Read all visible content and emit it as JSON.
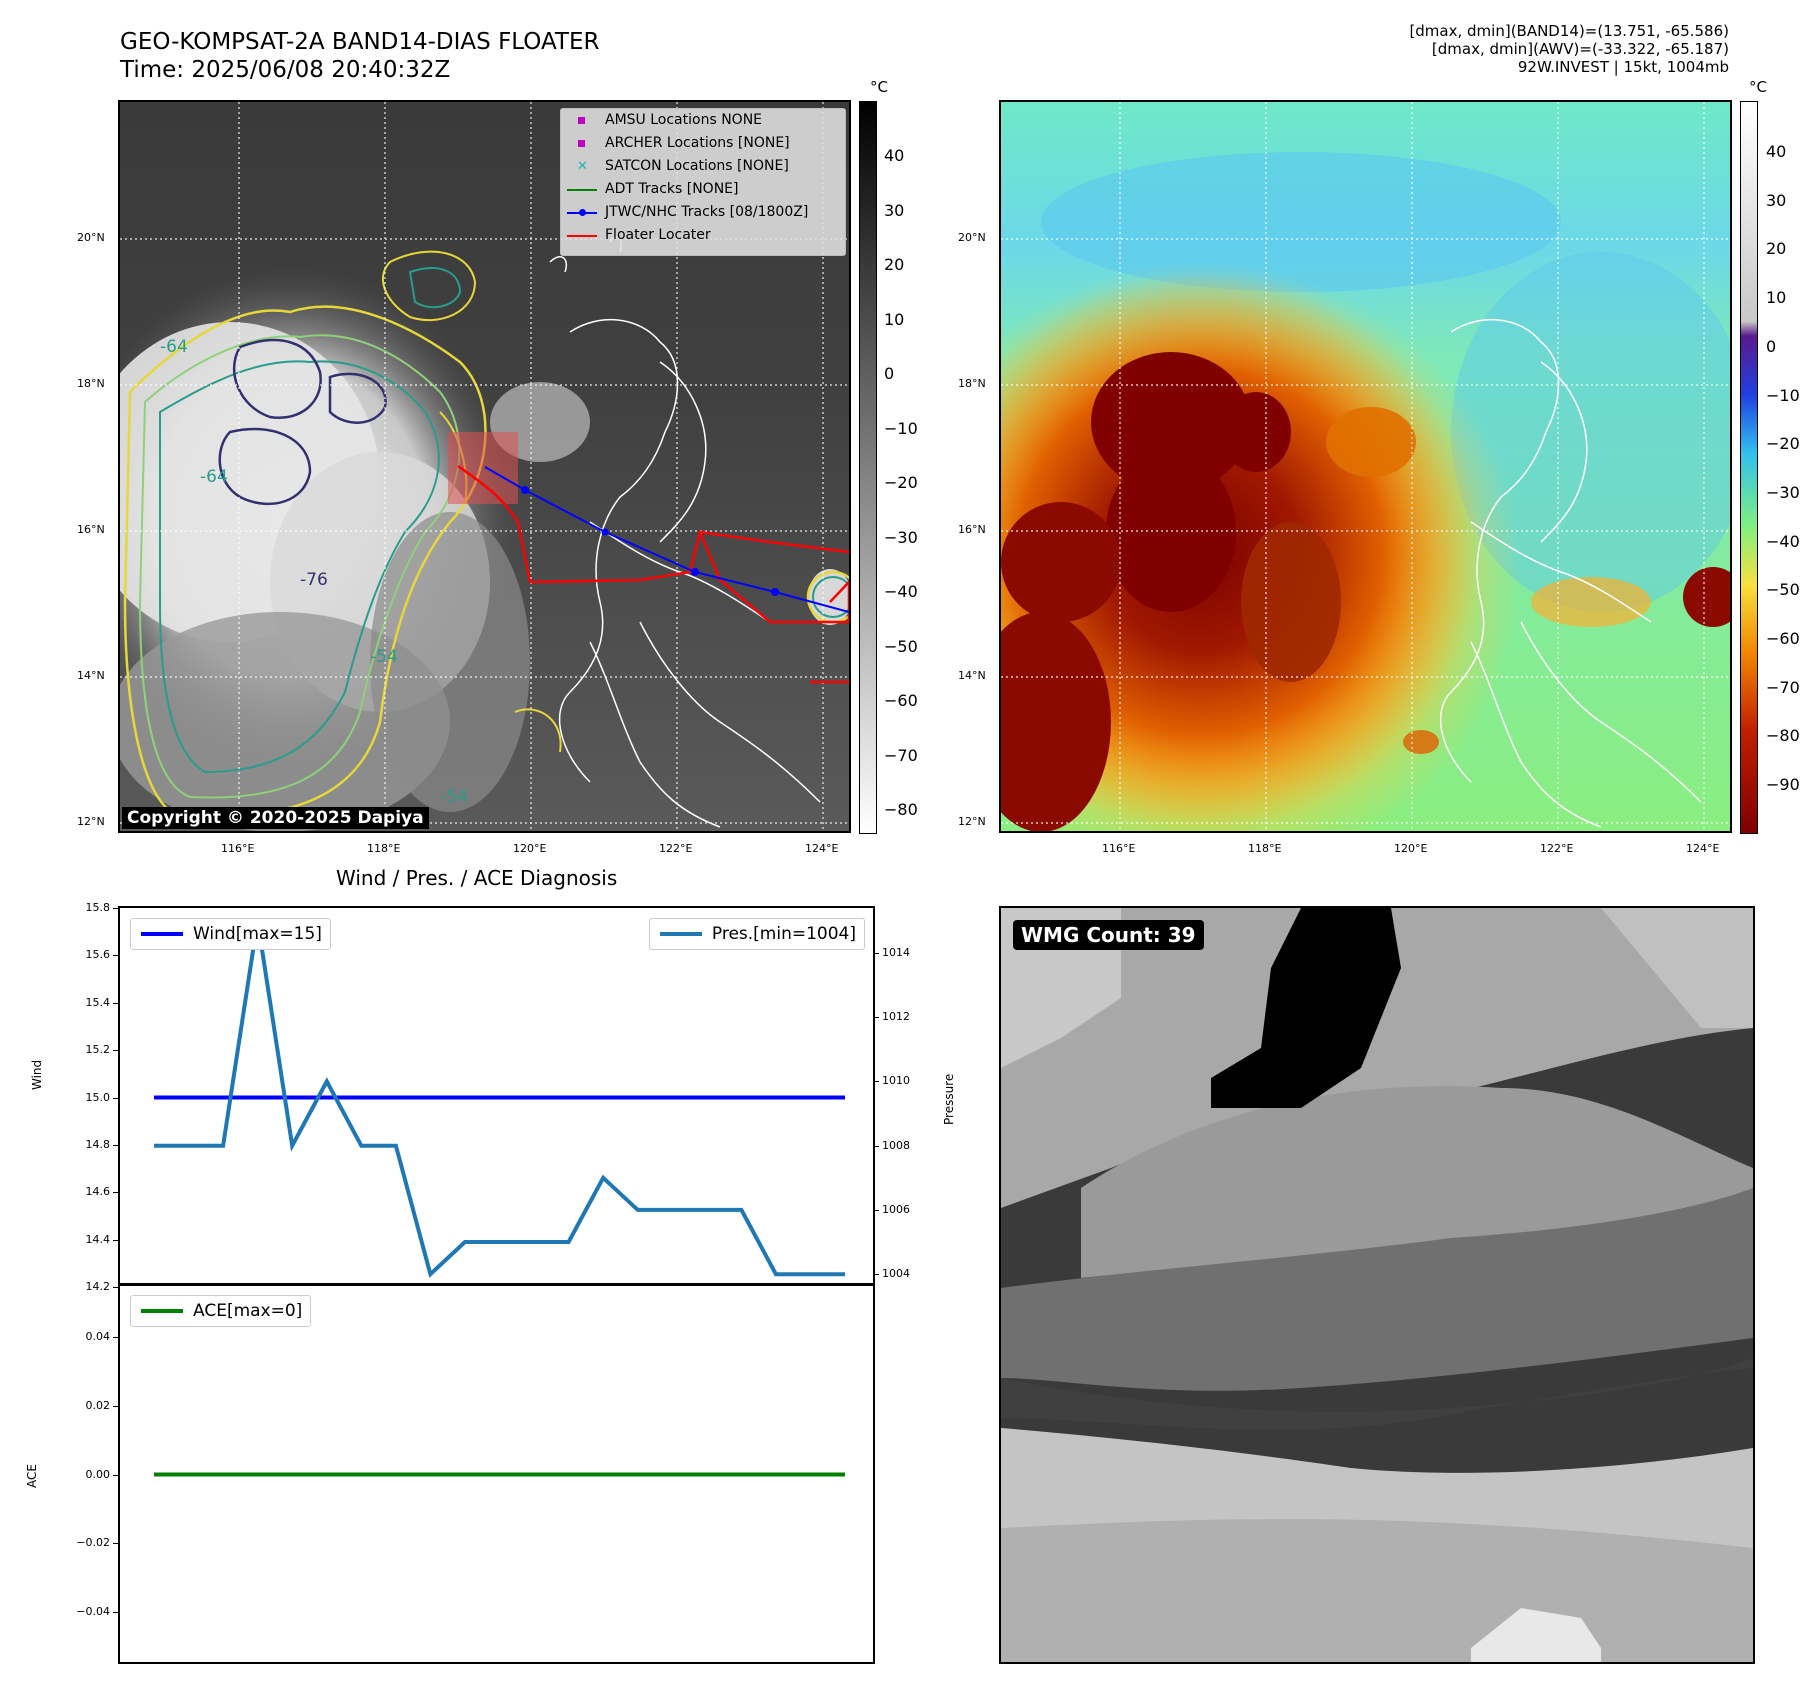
{
  "header": {
    "title_line1": "GEO-KOMPSAT-2A BAND14-DIAS FLOATER",
    "title_line2": "Time: 2025/06/08 20:40:32Z",
    "info_line1": "[dmax, dmin](BAND14)=(13.751, -65.586)",
    "info_line2": "[dmax, dmin](AWV)=(-33.322, -65.187)",
    "info_line3": "92W.INVEST | 15kt, 1004mb"
  },
  "map": {
    "lat_labels": [
      "20°N",
      "18°N",
      "16°N",
      "14°N",
      "12°N"
    ],
    "lon_labels": [
      "116°E",
      "118°E",
      "120°E",
      "122°E",
      "124°E"
    ],
    "copyright": "Copyright © 2020-2025 Dapiya",
    "contour_labels": [
      "-64",
      "-76",
      "-54",
      "-64",
      "-54"
    ],
    "legend": [
      {
        "label": "AMSU Locations NONE",
        "color": "#c000c0",
        "marker": "square"
      },
      {
        "label": "ARCHER Locations [NONE]",
        "color": "#c000c0",
        "marker": "square"
      },
      {
        "label": "SATCON Locations [NONE]",
        "color": "#1fb5b5",
        "marker": "x"
      },
      {
        "label": "ADT Tracks [NONE]",
        "color": "#008000",
        "marker": "line"
      },
      {
        "label": "JTWC/NHC Tracks [08/1800Z]",
        "color": "#0000ff",
        "marker": "line-dot"
      },
      {
        "label": "Floater Locater",
        "color": "#ff0000",
        "marker": "line"
      }
    ]
  },
  "colorbar_gray": {
    "unit": "°C",
    "ticks": [
      "40",
      "30",
      "20",
      "10",
      "0",
      "−10",
      "−20",
      "−30",
      "−40",
      "−50",
      "−60",
      "−70",
      "−80"
    ]
  },
  "colorbar_color": {
    "unit": "°C",
    "ticks": [
      "40",
      "30",
      "20",
      "10",
      "0",
      "−10",
      "−20",
      "−30",
      "−40",
      "−50",
      "−60",
      "−70",
      "−80",
      "−90"
    ]
  },
  "diagnosis": {
    "title": "Wind / Pres. / ACE Diagnosis",
    "wind_ylabel": "Wind",
    "pressure_ylabel": "Pressure",
    "ace_ylabel": "ACE",
    "wind_legend": "Wind[max=15]",
    "pres_legend": "Pres.[min=1004]",
    "ace_legend": "ACE[max=0]",
    "wind_ticks": [
      "15.8",
      "15.6",
      "15.4",
      "15.2",
      "15.0",
      "14.8",
      "14.6",
      "14.4",
      "14.2"
    ],
    "pres_ticks": [
      "1014",
      "1012",
      "1010",
      "1008",
      "1006",
      "1004"
    ],
    "ace_ticks": [
      "0.04",
      "0.02",
      "0.00",
      "−0.02",
      "−0.04"
    ]
  },
  "wmg": {
    "label": "WMG Count: 39"
  },
  "chart_data": [
    {
      "type": "line",
      "title": "Wind / Pres. / ACE Diagnosis",
      "ylabel": "Wind",
      "ylim": [
        14.2,
        15.8
      ],
      "x": [
        0,
        1,
        2,
        3,
        4,
        5,
        6,
        7,
        8,
        9,
        10,
        11,
        12,
        13,
        14,
        15,
        16,
        17,
        18,
        19,
        20
      ],
      "series": [
        {
          "name": "Wind[max=15]",
          "color": "#0000ff",
          "values": [
            15,
            15,
            15,
            15,
            15,
            15,
            15,
            15,
            15,
            15,
            15,
            15,
            15,
            15,
            15,
            15,
            15,
            15,
            15,
            15,
            15
          ]
        }
      ]
    },
    {
      "type": "line",
      "ylabel": "Pressure",
      "ylim": [
        1003.6,
        1015.4
      ],
      "x": [
        0,
        1,
        2,
        3,
        4,
        5,
        6,
        7,
        8,
        9,
        10,
        11,
        12,
        13,
        14,
        15,
        16,
        17,
        18,
        19,
        20
      ],
      "series": [
        {
          "name": "Pres.[min=1004]",
          "color": "#1f77b4",
          "values": [
            1008,
            1008,
            1008,
            1015,
            1008,
            1010,
            1008,
            1008,
            1004,
            1005,
            1005,
            1005,
            1005,
            1007,
            1006,
            1006,
            1006,
            1006,
            1004,
            1004,
            1004
          ]
        }
      ]
    },
    {
      "type": "line",
      "ylabel": "ACE",
      "ylim": [
        -0.055,
        0.055
      ],
      "x": [
        0,
        1,
        2,
        3,
        4,
        5,
        6,
        7,
        8,
        9,
        10,
        11,
        12,
        13,
        14,
        15,
        16,
        17,
        18,
        19,
        20
      ],
      "series": [
        {
          "name": "ACE[max=0]",
          "color": "#008000",
          "values": [
            0,
            0,
            0,
            0,
            0,
            0,
            0,
            0,
            0,
            0,
            0,
            0,
            0,
            0,
            0,
            0,
            0,
            0,
            0,
            0,
            0
          ]
        }
      ]
    }
  ]
}
